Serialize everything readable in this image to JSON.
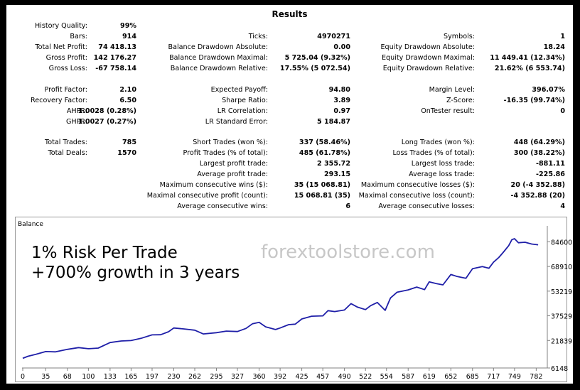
{
  "title": "Results",
  "rows": [
    [
      {
        "label": "History Quality:",
        "value": "99%"
      }
    ],
    [
      {
        "label": "Bars:",
        "value": "914"
      },
      {
        "label": "Ticks:",
        "value": "4970271"
      },
      {
        "label": "Symbols:",
        "value": "1"
      }
    ],
    [
      {
        "label": "Total Net Profit:",
        "value": "74 418.13"
      },
      {
        "label": "Balance Drawdown Absolute:",
        "value": "0.00"
      },
      {
        "label": "Equity Drawdown Absolute:",
        "value": "18.24"
      }
    ],
    [
      {
        "label": "Gross Profit:",
        "value": "142 176.27"
      },
      {
        "label": "Balance Drawdown Maximal:",
        "value": "5 725.04 (9.32%)"
      },
      {
        "label": "Equity Drawdown Maximal:",
        "value": "11 449.41 (12.34%)"
      }
    ],
    [
      {
        "label": "Gross Loss:",
        "value": "-67 758.14"
      },
      {
        "label": "Balance Drawdown Relative:",
        "value": "17.55% (5 072.54)"
      },
      {
        "label": "Equity Drawdown Relative:",
        "value": "21.62% (6 553.74)"
      }
    ],
    [
      {
        "label": "Profit Factor:",
        "value": "2.10"
      },
      {
        "label": "Expected Payoff:",
        "value": "94.80"
      },
      {
        "label": "Margin Level:",
        "value": "396.07%"
      }
    ],
    [
      {
        "label": "Recovery Factor:",
        "value": "6.50"
      },
      {
        "label": "Sharpe Ratio:",
        "value": "3.89"
      },
      {
        "label": "Z-Score:",
        "value": "-16.35 (99.74%)"
      }
    ],
    [
      {
        "label": "AHPR:",
        "value": "1.0028 (0.28%)"
      },
      {
        "label": "LR Correlation:",
        "value": "0.97"
      },
      {
        "label": "OnTester result:",
        "value": "0"
      }
    ],
    [
      {
        "label": "GHPR:",
        "value": "1.0027 (0.27%)"
      },
      {
        "label": "LR Standard Error:",
        "value": "5 184.87"
      }
    ],
    [
      {
        "label": "Total Trades:",
        "value": "785"
      },
      {
        "label": "Short Trades (won %):",
        "value": "337 (58.46%)"
      },
      {
        "label": "Long Trades (won %):",
        "value": "448 (64.29%)"
      }
    ],
    [
      {
        "label": "Total Deals:",
        "value": "1570"
      },
      {
        "label": "Profit Trades (% of total):",
        "value": "485 (61.78%)"
      },
      {
        "label": "Loss Trades (% of total):",
        "value": "300 (38.22%)"
      }
    ],
    [
      {
        "label": "Largest profit trade:",
        "value": "2 355.72"
      },
      {
        "label": "Largest loss trade:",
        "value": "-881.11"
      }
    ],
    [
      {
        "label": "Average profit trade:",
        "value": "293.15"
      },
      {
        "label": "Average loss trade:",
        "value": "-225.86"
      }
    ],
    [
      {
        "label": "Maximum consecutive wins ($):",
        "value": "35 (15 068.81)"
      },
      {
        "label": "Maximum consecutive losses ($):",
        "value": "20 (-4 352.88)"
      }
    ],
    [
      {
        "label": "Maximal consecutive profit (count):",
        "value": "15 068.81 (35)"
      },
      {
        "label": "Maximal consecutive loss (count):",
        "value": "-4 352.88 (20)"
      }
    ],
    [
      {
        "label": "Average consecutive wins:",
        "value": "6"
      },
      {
        "label": "Average consecutive losses:",
        "value": "4"
      }
    ]
  ],
  "overlay": {
    "line1": "1% Risk Per Trade",
    "line2": "+700% growth in 3 years",
    "watermark": "forextoolstore.com"
  },
  "colors": {
    "line": "#1f1fa8",
    "background": "#000000",
    "panel": "#ffffff",
    "watermark": "#c7c7c7"
  },
  "chart_data": {
    "type": "line",
    "title": "Balance",
    "xlabel": "",
    "ylabel": "",
    "x_ticks": [
      0,
      35,
      68,
      100,
      133,
      165,
      197,
      230,
      262,
      295,
      327,
      360,
      392,
      425,
      457,
      490,
      522,
      554,
      587,
      619,
      652,
      685,
      717,
      749,
      782
    ],
    "y_ticks": [
      6148,
      21839,
      37529,
      53219,
      68910,
      84600
    ],
    "xlim": [
      0,
      800
    ],
    "ylim": [
      6148,
      92000
    ],
    "grid": false,
    "series": [
      {
        "name": "Balance",
        "points": [
          [
            0,
            10500
          ],
          [
            8,
            11800
          ],
          [
            20,
            13000
          ],
          [
            35,
            14800
          ],
          [
            50,
            14600
          ],
          [
            68,
            16200
          ],
          [
            85,
            17300
          ],
          [
            100,
            16600
          ],
          [
            115,
            17000
          ],
          [
            133,
            20500
          ],
          [
            150,
            21500
          ],
          [
            165,
            21800
          ],
          [
            180,
            23200
          ],
          [
            197,
            25400
          ],
          [
            210,
            25500
          ],
          [
            222,
            27400
          ],
          [
            230,
            29800
          ],
          [
            245,
            29200
          ],
          [
            262,
            28400
          ],
          [
            275,
            26000
          ],
          [
            295,
            26800
          ],
          [
            310,
            27800
          ],
          [
            327,
            27500
          ],
          [
            340,
            29500
          ],
          [
            350,
            32500
          ],
          [
            360,
            33400
          ],
          [
            370,
            30500
          ],
          [
            385,
            28800
          ],
          [
            392,
            29800
          ],
          [
            405,
            31900
          ],
          [
            415,
            32200
          ],
          [
            425,
            35500
          ],
          [
            440,
            37300
          ],
          [
            457,
            37500
          ],
          [
            465,
            40800
          ],
          [
            475,
            40200
          ],
          [
            490,
            41200
          ],
          [
            500,
            45300
          ],
          [
            510,
            43000
          ],
          [
            522,
            41500
          ],
          [
            530,
            44000
          ],
          [
            540,
            46000
          ],
          [
            552,
            41000
          ],
          [
            560,
            48800
          ],
          [
            570,
            52500
          ],
          [
            587,
            54000
          ],
          [
            600,
            55800
          ],
          [
            612,
            54200
          ],
          [
            619,
            59100
          ],
          [
            630,
            58000
          ],
          [
            640,
            57200
          ],
          [
            652,
            63800
          ],
          [
            662,
            62500
          ],
          [
            675,
            61400
          ],
          [
            685,
            67500
          ],
          [
            700,
            68800
          ],
          [
            710,
            67800
          ],
          [
            717,
            71600
          ],
          [
            725,
            74600
          ],
          [
            732,
            78000
          ],
          [
            740,
            82100
          ],
          [
            745,
            86000
          ],
          [
            749,
            86600
          ],
          [
            755,
            84000
          ],
          [
            765,
            84300
          ],
          [
            775,
            83200
          ],
          [
            785,
            82700
          ]
        ]
      }
    ]
  }
}
